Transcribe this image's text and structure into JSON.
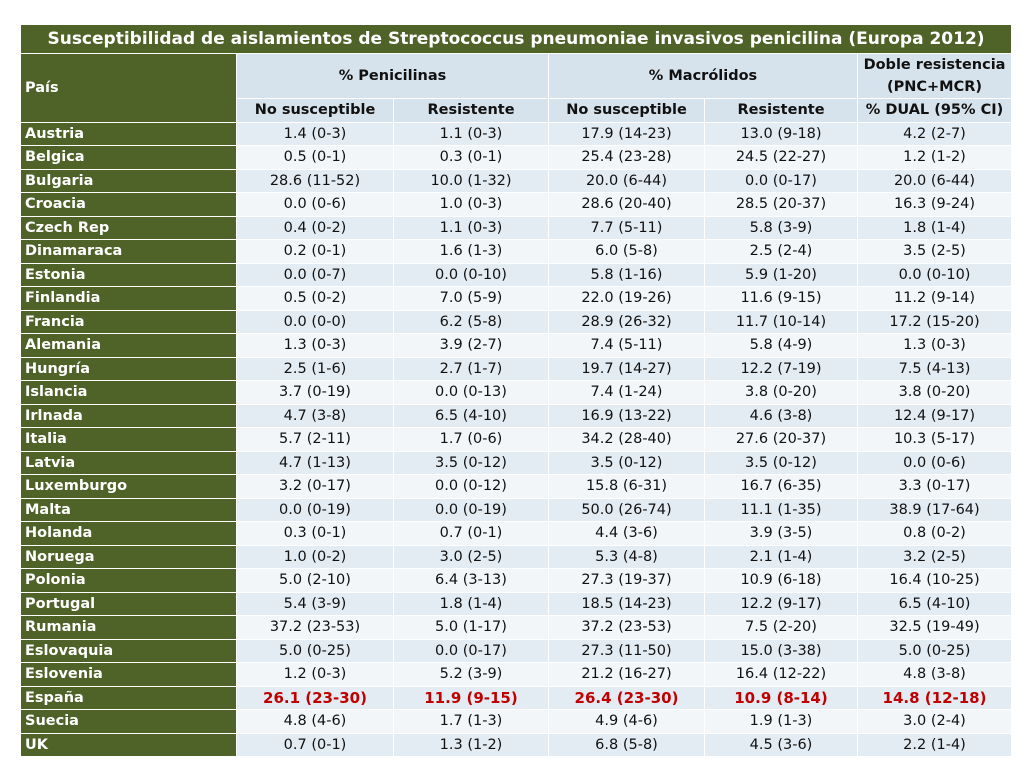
{
  "title": "Susceptibilidad de aislamientos de Streptococcus pneumoniae invasivos penicilina (Europa 2012)",
  "headers": {
    "country": "País",
    "penicilinas": "% Penicilinas",
    "macrolidos": "% Macrólidos",
    "doble_line1": "Doble resistencia",
    "doble_line2": "(PNC+MCR)",
    "sub": [
      "No susceptible",
      "Resistente",
      "No susceptible",
      "Resistente",
      "% DUAL (95% CI)"
    ]
  },
  "highlight_color": "#c00000",
  "rows": [
    {
      "country": "Austria",
      "values": [
        "1.4 (0-3)",
        "1.1 (0-3)",
        "17.9 (14-23)",
        "13.0 (9-18)",
        "4.2 (2-7)"
      ]
    },
    {
      "country": "Belgica",
      "values": [
        "0.5 (0-1)",
        "0.3 (0-1)",
        "25.4 (23-28)",
        "24.5 (22-27)",
        "1.2 (1-2)"
      ]
    },
    {
      "country": "Bulgaria",
      "values": [
        "28.6 (11-52)",
        "10.0 (1-32)",
        "20.0 (6-44)",
        "0.0 (0-17)",
        "20.0 (6-44)"
      ]
    },
    {
      "country": "Croacia",
      "values": [
        "0.0 (0-6)",
        "1.0 (0-3)",
        "28.6 (20-40)",
        "28.5 (20-37)",
        "16.3 (9-24)"
      ]
    },
    {
      "country": "Czech Rep",
      "values": [
        "0.4 (0-2)",
        "1.1 (0-3)",
        "7.7 (5-11)",
        "5.8 (3-9)",
        "1.8 (1-4)"
      ]
    },
    {
      "country": "Dinamaraca",
      "values": [
        "0.2 (0-1)",
        "1.6 (1-3)",
        "6.0 (5-8)",
        "2.5 (2-4)",
        "3.5 (2-5)"
      ]
    },
    {
      "country": "Estonia",
      "values": [
        "0.0 (0-7)",
        "0.0 (0-10)",
        "5.8 (1-16)",
        "5.9 (1-20)",
        "0.0 (0-10)"
      ]
    },
    {
      "country": "Finlandia",
      "values": [
        "0.5 (0-2)",
        "7.0 (5-9)",
        "22.0 (19-26)",
        "11.6 (9-15)",
        "11.2 (9-14)"
      ]
    },
    {
      "country": "Francia",
      "values": [
        "0.0 (0-0)",
        "6.2 (5-8)",
        "28.9 (26-32)",
        "11.7 (10-14)",
        "17.2 (15-20)"
      ]
    },
    {
      "country": "Alemania",
      "values": [
        "1.3 (0-3)",
        "3.9 (2-7)",
        "7.4 (5-11)",
        "5.8 (4-9)",
        "1.3 (0-3)"
      ]
    },
    {
      "country": "Hungría",
      "values": [
        "2.5 (1-6)",
        "2.7 (1-7)",
        "19.7 (14-27)",
        "12.2 (7-19)",
        "7.5 (4-13)"
      ]
    },
    {
      "country": "Islancia",
      "values": [
        "3.7 (0-19)",
        "0.0 (0-13)",
        "7.4 (1-24)",
        "3.8 (0-20)",
        "3.8 (0-20)"
      ]
    },
    {
      "country": "Irlnada",
      "values": [
        "4.7 (3-8)",
        "6.5 (4-10)",
        "16.9 (13-22)",
        "4.6 (3-8)",
        "12.4 (9-17)"
      ]
    },
    {
      "country": "Italia",
      "values": [
        "5.7 (2-11)",
        "1.7 (0-6)",
        "34.2 (28-40)",
        "27.6 (20-37)",
        "10.3 (5-17)"
      ]
    },
    {
      "country": "Latvia",
      "values": [
        "4.7 (1-13)",
        "3.5 (0-12)",
        "3.5 (0-12)",
        "3.5 (0-12)",
        "0.0 (0-6)"
      ]
    },
    {
      "country": "Luxemburgo",
      "values": [
        "3.2 (0-17)",
        "0.0 (0-12)",
        "15.8 (6-31)",
        "16.7 (6-35)",
        "3.3 (0-17)"
      ]
    },
    {
      "country": "Malta",
      "values": [
        "0.0 (0-19)",
        "0.0 (0-19)",
        "50.0 (26-74)",
        "11.1 (1-35)",
        "38.9 (17-64)"
      ]
    },
    {
      "country": "Holanda",
      "values": [
        "0.3 (0-1)",
        "0.7 (0-1)",
        "4.4 (3-6)",
        "3.9 (3-5)",
        "0.8 (0-2)"
      ]
    },
    {
      "country": "Noruega",
      "values": [
        "1.0 (0-2)",
        "3.0 (2-5)",
        "5.3 (4-8)",
        "2.1 (1-4)",
        "3.2 (2-5)"
      ]
    },
    {
      "country": "Polonia",
      "values": [
        "5.0 (2-10)",
        "6.4 (3-13)",
        "27.3 (19-37)",
        "10.9 (6-18)",
        "16.4 (10-25)"
      ]
    },
    {
      "country": "Portugal",
      "values": [
        "5.4 (3-9)",
        "1.8 (1-4)",
        "18.5 (14-23)",
        "12.2 (9-17)",
        "6.5 (4-10)"
      ]
    },
    {
      "country": "Rumania",
      "values": [
        "37.2 (23-53)",
        "5.0 (1-17)",
        "37.2 (23-53)",
        "7.5 (2-20)",
        "32.5 (19-49)"
      ]
    },
    {
      "country": "Eslovaquia",
      "values": [
        "5.0 (0-25)",
        "0.0 (0-17)",
        "27.3 (11-50)",
        "15.0 (3-38)",
        "5.0 (0-25)"
      ]
    },
    {
      "country": "Eslovenia",
      "values": [
        "1.2 (0-3)",
        "5.2 (3-9)",
        "21.2 (16-27)",
        "16.4 (12-22)",
        "4.8 (3-8)"
      ]
    },
    {
      "country": "España",
      "values": [
        "26.1 (23-30)",
        "11.9 (9-15)",
        "26.4 (23-30)",
        "10.9 (8-14)",
        "14.8 (12-18)"
      ],
      "highlight": true
    },
    {
      "country": "Suecia",
      "values": [
        "4.8 (4-6)",
        "1.7 (1-3)",
        "4.9 (4-6)",
        "1.9 (1-3)",
        "3.0 (2-4)"
      ]
    },
    {
      "country": "UK",
      "values": [
        "0.7 (0-1)",
        "1.3 (1-2)",
        "6.8 (5-8)",
        "4.5 (3-6)",
        "2.2 (1-4)"
      ]
    }
  ]
}
